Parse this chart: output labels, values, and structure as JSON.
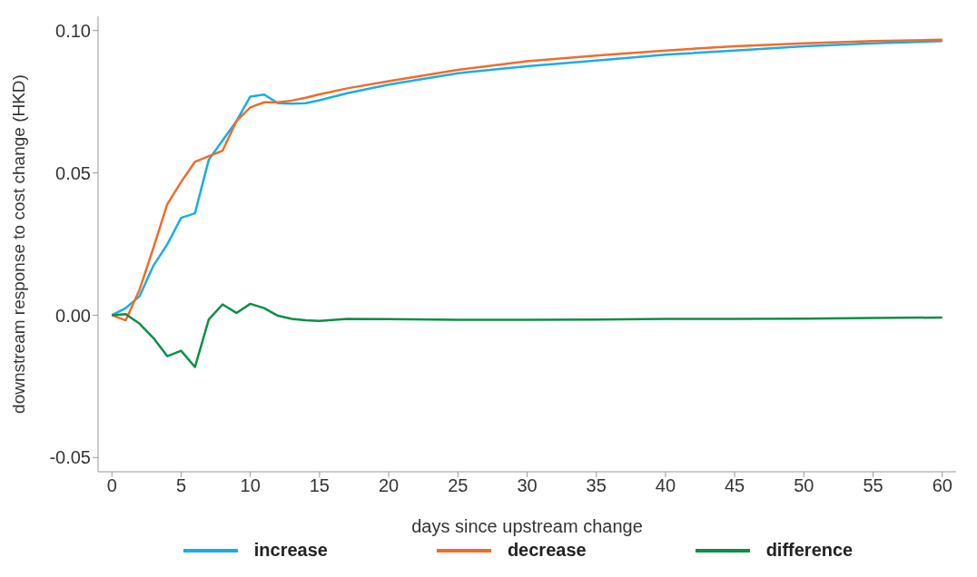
{
  "chart_data": {
    "type": "line",
    "xlabel": "days since upstream change",
    "ylabel": "downstream response to cost change (HKD)",
    "x": [
      0,
      1,
      2,
      3,
      4,
      5,
      6,
      7,
      8,
      9,
      10,
      11,
      12,
      13,
      14,
      15,
      17,
      20,
      25,
      30,
      35,
      40,
      45,
      50,
      55,
      60
    ],
    "series": [
      {
        "name": "increase",
        "color": "#1aace8",
        "values": [
          0,
          0.0025,
          0.0067,
          0.0174,
          0.0249,
          0.0342,
          0.0358,
          0.0546,
          0.0614,
          0.0682,
          0.0768,
          0.0775,
          0.0745,
          0.0743,
          0.0745,
          0.0755,
          0.078,
          0.081,
          0.085,
          0.0875,
          0.0895,
          0.0915,
          0.093,
          0.0945,
          0.0955,
          0.0963
        ]
      },
      {
        "name": "decrease",
        "color": "#f26b2a",
        "values": [
          0,
          -0.0018,
          0.009,
          0.0237,
          0.039,
          0.0468,
          0.0539,
          0.0559,
          0.0578,
          0.0682,
          0.073,
          0.0748,
          0.0748,
          0.0754,
          0.0764,
          0.0776,
          0.0797,
          0.0822,
          0.0862,
          0.0892,
          0.0912,
          0.093,
          0.0945,
          0.0955,
          0.0963,
          0.0968
        ]
      },
      {
        "name": "difference",
        "color": "#0c8f45",
        "values": [
          0,
          0.0004,
          -0.003,
          -0.008,
          -0.0144,
          -0.0125,
          -0.0182,
          -0.0015,
          0.0038,
          0.0008,
          0.004,
          0.0025,
          -0.0002,
          -0.0013,
          -0.0018,
          -0.002,
          -0.0013,
          -0.0014,
          -0.0016,
          -0.0016,
          -0.0015,
          -0.0013,
          -0.0013,
          -0.0012,
          -0.001,
          -0.0008
        ]
      }
    ],
    "xlim": [
      -1,
      61
    ],
    "xticks": [
      0,
      5,
      10,
      15,
      20,
      25,
      30,
      35,
      40,
      45,
      50,
      55,
      60
    ],
    "ylim": [
      -0.055,
      0.105
    ],
    "yticks": [
      {
        "value": -0.05,
        "label": "-0.05"
      },
      {
        "value": 0,
        "label": "0.00"
      },
      {
        "value": 0.05,
        "label": "0.05"
      },
      {
        "value": 0.1,
        "label": "0.10"
      }
    ],
    "grid": false,
    "legend": "bottom",
    "marker": "none",
    "line_style": "solid"
  }
}
